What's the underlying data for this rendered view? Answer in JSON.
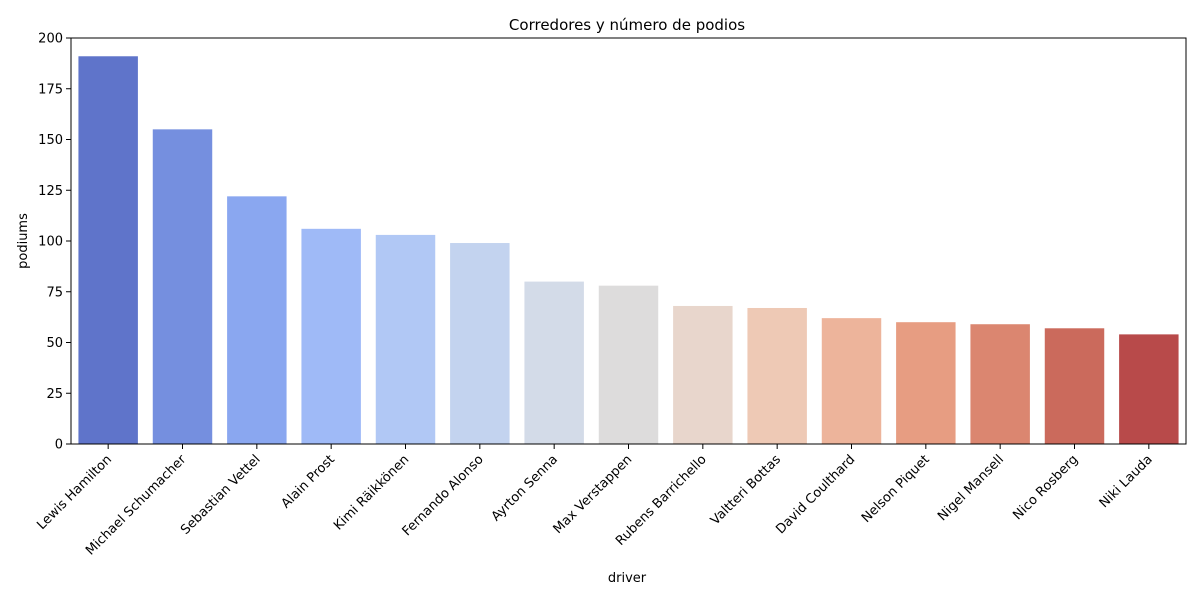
{
  "chart_data": {
    "type": "bar",
    "title": "Corredores y número de podios",
    "xlabel": "driver",
    "ylabel": "podiums",
    "ylim": [
      0,
      200
    ],
    "yticks": [
      0,
      25,
      50,
      75,
      100,
      125,
      150,
      175,
      200
    ],
    "grid": false,
    "categories": [
      "Lewis Hamilton",
      "Michael Schumacher",
      "Sebastian Vettel",
      "Alain Prost",
      "Kimi Räikkönen",
      "Fernando Alonso",
      "Ayrton Senna",
      "Max Verstappen",
      "Rubens Barrichello",
      "Valtteri Bottas",
      "David Coulthard",
      "Nelson Piquet",
      "Nigel Mansell",
      "Nico Rosberg",
      "Niki Lauda"
    ],
    "values": [
      191,
      155,
      122,
      106,
      103,
      99,
      80,
      78,
      68,
      67,
      62,
      60,
      59,
      57,
      54
    ],
    "colors": [
      "#5f74ca",
      "#758fdf",
      "#8aa7f0",
      "#9fbaf7",
      "#b1c8f5",
      "#c3d3ef",
      "#d3dbe8",
      "#dddcdc",
      "#e8d6cc",
      "#eec9b5",
      "#edb49b",
      "#e79d82",
      "#db8670",
      "#cb6a5c",
      "#b84a4a"
    ]
  }
}
